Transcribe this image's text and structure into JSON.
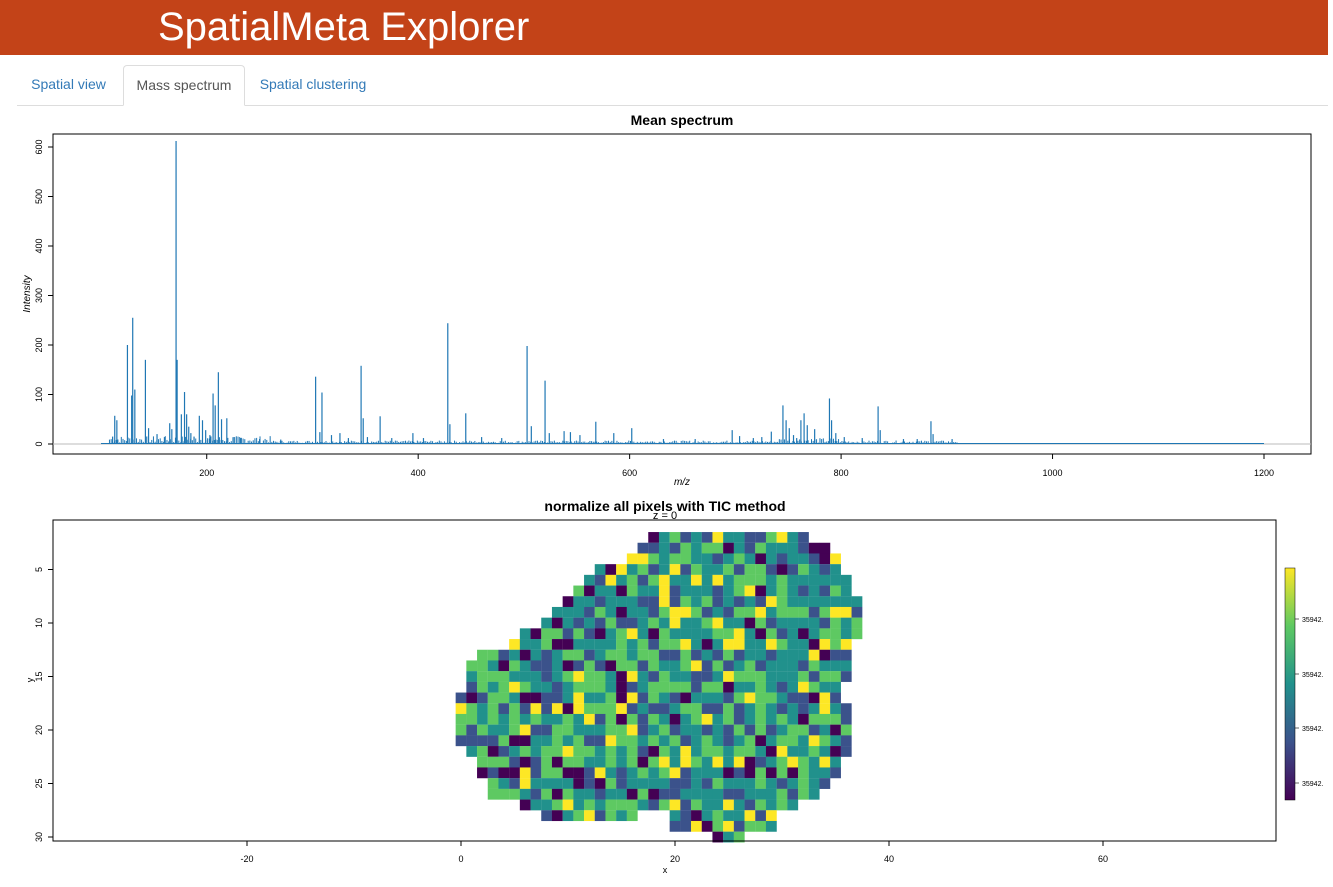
{
  "app": {
    "title": "SpatialMeta Explorer",
    "accent": "#c34318"
  },
  "tabs": [
    {
      "label": "Spatial view",
      "active": false
    },
    {
      "label": "Mass spectrum",
      "active": true
    },
    {
      "label": "Spatial clustering",
      "active": false
    }
  ],
  "chart_data": [
    {
      "type": "line",
      "title": "Mean spectrum",
      "xlabel": "m/z",
      "ylabel": "Intensity",
      "xlim": [
        100,
        1200
      ],
      "ylim": [
        0,
        620
      ],
      "xticks": [
        200,
        400,
        600,
        800,
        1000,
        1200
      ],
      "yticks": [
        0,
        100,
        200,
        300,
        400,
        500,
        600
      ],
      "color": "#1f77b4",
      "peaks": [
        [
          111,
          15
        ],
        [
          113,
          57
        ],
        [
          115,
          48
        ],
        [
          125,
          200
        ],
        [
          129,
          98
        ],
        [
          130,
          255
        ],
        [
          132,
          110
        ],
        [
          142,
          170
        ],
        [
          145,
          32
        ],
        [
          153,
          20
        ],
        [
          160,
          14
        ],
        [
          165,
          42
        ],
        [
          167,
          30
        ],
        [
          171,
          612
        ],
        [
          172,
          170
        ],
        [
          176,
          60
        ],
        [
          179,
          105
        ],
        [
          181,
          60
        ],
        [
          183,
          35
        ],
        [
          185,
          22
        ],
        [
          188,
          15
        ],
        [
          193,
          57
        ],
        [
          196,
          48
        ],
        [
          199,
          28
        ],
        [
          203,
          18
        ],
        [
          206,
          102
        ],
        [
          208,
          78
        ],
        [
          211,
          145
        ],
        [
          214,
          50
        ],
        [
          219,
          52
        ],
        [
          225,
          14
        ],
        [
          232,
          12
        ],
        [
          250,
          10
        ],
        [
          270,
          9
        ],
        [
          303,
          136
        ],
        [
          307,
          24
        ],
        [
          309,
          104
        ],
        [
          318,
          18
        ],
        [
          326,
          22
        ],
        [
          334,
          12
        ],
        [
          346,
          158
        ],
        [
          348,
          52
        ],
        [
          352,
          14
        ],
        [
          364,
          56
        ],
        [
          375,
          12
        ],
        [
          395,
          22
        ],
        [
          405,
          12
        ],
        [
          428,
          244
        ],
        [
          430,
          40
        ],
        [
          445,
          62
        ],
        [
          460,
          14
        ],
        [
          479,
          12
        ],
        [
          503,
          198
        ],
        [
          507,
          36
        ],
        [
          520,
          128
        ],
        [
          524,
          22
        ],
        [
          538,
          26
        ],
        [
          544,
          24
        ],
        [
          553,
          18
        ],
        [
          568,
          45
        ],
        [
          585,
          22
        ],
        [
          602,
          32
        ],
        [
          632,
          10
        ],
        [
          662,
          10
        ],
        [
          697,
          28
        ],
        [
          704,
          16
        ],
        [
          717,
          12
        ],
        [
          725,
          14
        ],
        [
          734,
          25
        ],
        [
          745,
          78
        ],
        [
          748,
          48
        ],
        [
          751,
          32
        ],
        [
          755,
          18
        ],
        [
          758,
          12
        ],
        [
          762,
          48
        ],
        [
          765,
          62
        ],
        [
          768,
          38
        ],
        [
          775,
          30
        ],
        [
          789,
          92
        ],
        [
          791,
          48
        ],
        [
          795,
          22
        ],
        [
          803,
          14
        ],
        [
          820,
          12
        ],
        [
          835,
          76
        ],
        [
          837,
          28
        ],
        [
          859,
          10
        ],
        [
          872,
          10
        ],
        [
          885,
          46
        ],
        [
          887,
          20
        ],
        [
          905,
          10
        ]
      ]
    },
    {
      "type": "heatmap",
      "title": "normalize all pixels with TIC method",
      "subtitle": "z = 0",
      "xlabel": "x",
      "ylabel": "y",
      "xlim": [
        -40,
        76
      ],
      "ylim": [
        31.5,
        1.5
      ],
      "xticks": [
        -20,
        0,
        20,
        40,
        60
      ],
      "yticks": [
        5,
        10,
        15,
        20,
        25,
        30
      ],
      "colorbar_labels": [
        "35942.",
        "35942.",
        "35942.",
        "35942."
      ],
      "palette": [
        "#440154",
        "#3b528b",
        "#21918c",
        "#5ec962",
        "#fde725"
      ],
      "rows": [
        {
          "y": 2,
          "x": [
            18,
            32
          ]
        },
        {
          "y": 3,
          "x": [
            17,
            34
          ]
        },
        {
          "y": 4,
          "x": [
            16,
            35
          ]
        },
        {
          "y": 5,
          "x": [
            13,
            35
          ]
        },
        {
          "y": 6,
          "x": [
            12,
            36
          ]
        },
        {
          "y": 7,
          "x": [
            11,
            36
          ]
        },
        {
          "y": 8,
          "x": [
            10,
            37
          ]
        },
        {
          "y": 9,
          "x": [
            9,
            37
          ]
        },
        {
          "y": 10,
          "x": [
            8,
            37
          ]
        },
        {
          "y": 11,
          "x": [
            6,
            37
          ]
        },
        {
          "y": 12,
          "x": [
            5,
            36
          ]
        },
        {
          "y": 13,
          "x": [
            2,
            36
          ]
        },
        {
          "y": 14,
          "x": [
            1,
            36
          ]
        },
        {
          "y": 15,
          "x": [
            1,
            36
          ]
        },
        {
          "y": 16,
          "x": [
            1,
            35
          ]
        },
        {
          "y": 17,
          "x": [
            0,
            35
          ]
        },
        {
          "y": 18,
          "x": [
            0,
            36
          ]
        },
        {
          "y": 19,
          "x": [
            0,
            36
          ]
        },
        {
          "y": 20,
          "x": [
            0,
            36
          ]
        },
        {
          "y": 21,
          "x": [
            0,
            36
          ]
        },
        {
          "y": 22,
          "x": [
            1,
            36
          ]
        },
        {
          "y": 23,
          "x": [
            2,
            35
          ]
        },
        {
          "y": 24,
          "x": [
            2,
            35
          ]
        },
        {
          "y": 25,
          "x": [
            3,
            34
          ]
        },
        {
          "y": 26,
          "x": [
            3,
            33
          ]
        },
        {
          "y": 27,
          "x": [
            6,
            31
          ]
        },
        {
          "y": 28,
          "x": [
            8,
            16
          ]
        },
        {
          "y": 28,
          "x": [
            20,
            29
          ]
        },
        {
          "y": 29,
          "x": [
            20,
            29
          ]
        },
        {
          "y": 30,
          "x": [
            24,
            26
          ]
        }
      ]
    }
  ]
}
